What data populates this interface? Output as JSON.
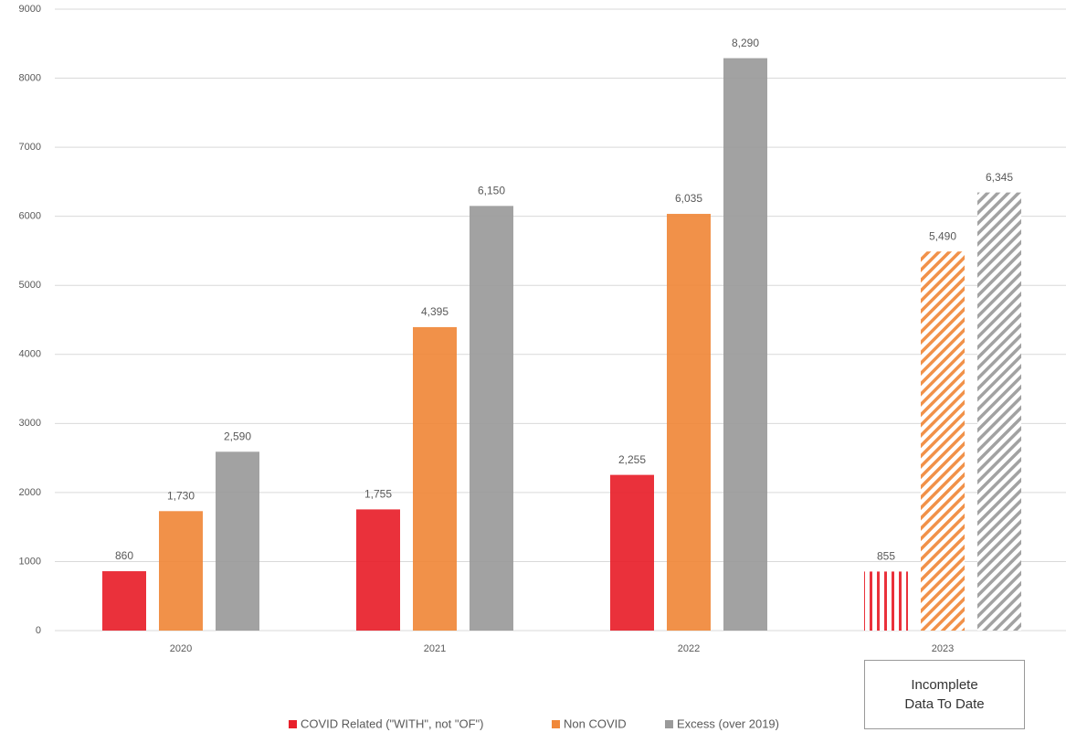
{
  "chart_data": {
    "type": "bar",
    "categories": [
      "2020",
      "2021",
      "2022",
      "2023"
    ],
    "series": [
      {
        "name": "COVID Related (\"WITH\", not \"OF\")",
        "color": "#e8202a",
        "values": [
          860,
          1755,
          2255,
          855
        ],
        "value_labels": [
          "860",
          "1,755",
          "2,255",
          "855"
        ]
      },
      {
        "name": "Non COVID",
        "color": "#f0883a",
        "values": [
          1730,
          4395,
          6035,
          5490
        ],
        "value_labels": [
          "1,730",
          "4,395",
          "6,035",
          "5,490"
        ]
      },
      {
        "name": "Excess (over 2019)",
        "color": "#9a9a9a",
        "values": [
          2590,
          6150,
          8290,
          6345
        ],
        "value_labels": [
          "2,590",
          "6,150",
          "8,290",
          "6,345"
        ]
      }
    ],
    "hatched": [
      false,
      false,
      false,
      true
    ],
    "ylim": [
      0,
      9000
    ],
    "yticks": [
      0,
      1000,
      2000,
      3000,
      4000,
      5000,
      6000,
      7000,
      8000,
      9000
    ],
    "grid": true,
    "legend": "bottom",
    "annotation": "Incomplete Data To Date"
  }
}
